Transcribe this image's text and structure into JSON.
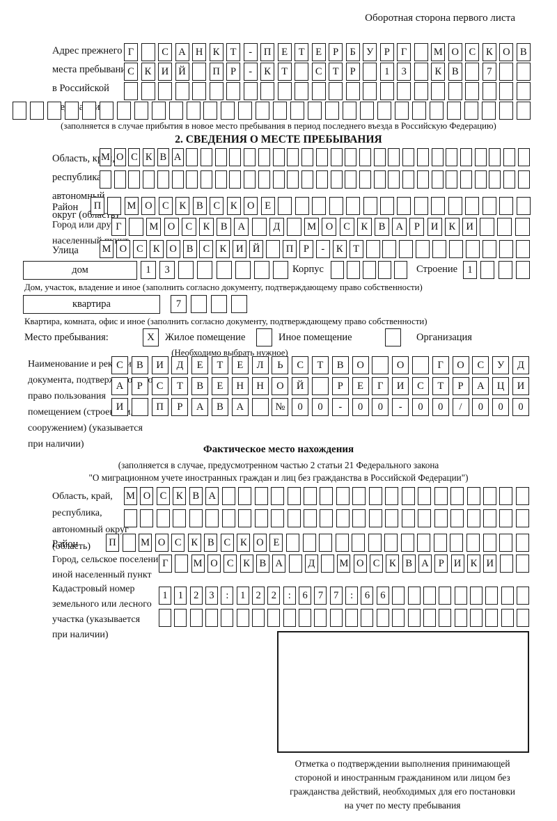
{
  "page_header": "Оборотная сторона первого листа",
  "prev_address": {
    "label": "Адрес прежнего\nместа пребывания\nв Российской\nФедерации",
    "rows": [
      {
        "count": 24,
        "value": "Г САНКТ-ПЕТЕРБУРГ МОСКОВ"
      },
      {
        "count": 24,
        "value": "СКИЙ ПР-КТ СТР 13 КВ 7"
      },
      {
        "count": 24,
        "value": ""
      },
      {
        "count": 30,
        "value": ""
      }
    ],
    "note": "(заполняется в случае прибытия в новое место пребывания в период последнего въезда в Российскую Федерацию)"
  },
  "section2": {
    "title": "2. СВЕДЕНИЯ О МЕСТЕ ПРЕБЫВАНИЯ",
    "oblast": {
      "label": "Область, край,\nреспублика,\nавтономный\nокруг (область)",
      "rows": [
        {
          "count": 30,
          "value": "МОСКВА"
        },
        {
          "count": 30,
          "value": ""
        }
      ]
    },
    "raion": {
      "label": "Район",
      "row": {
        "count": 26,
        "value": "П МОСКВСКОЕ"
      }
    },
    "gorod": {
      "label": "Город или другой\nнаселенный пункт",
      "row": {
        "count": 24,
        "value": "Г МОСКВА Д МОСКВАРИКИ"
      }
    },
    "ulitsa": {
      "label": "Улица",
      "row": {
        "count": 26,
        "value": "МОСКОВСКИЙ ПР-КТ"
      }
    },
    "dom": {
      "box_label": "дом",
      "row": {
        "count": 8,
        "value": "13"
      },
      "korpus_label": "Корпус",
      "korpus_row": {
        "count": 5,
        "value": ""
      },
      "stroenie_label": "Строение",
      "stroenie_row": {
        "count": 4,
        "value": "1"
      },
      "note": "Дом, участок, владение и иное (заполнить согласно документу, подтверждающему право собственности)"
    },
    "kvartira": {
      "box_label": "квартира",
      "row": {
        "count": 4,
        "value": "7"
      },
      "note": "Квартира, комната, офис и иное (заполнить согласно документу, подтверждающему право собственности)"
    },
    "mesto": {
      "label": "Место пребывания:",
      "options": [
        {
          "label": "Жилое помещение",
          "checked": "X"
        },
        {
          "label": "Иное помещение",
          "checked": ""
        },
        {
          "label": "Организация",
          "checked": ""
        }
      ],
      "note": "(Необходимо выбрать нужное)"
    },
    "document": {
      "label": "Наименование и реквизиты\nдокумента, подтверждающего\nправо пользования\nпомещением (строением,\nсооружением) (указывается\nпри наличии)",
      "rows": [
        {
          "count": 21,
          "value": "СВИДЕТЕЛЬСТВО О ГОСУД"
        },
        {
          "count": 21,
          "value": "АРСТВЕННОЙ РЕГИСТРАЦИ"
        },
        {
          "count": 21,
          "value": "И ПРАВА №00-00-00/000"
        }
      ]
    }
  },
  "fact": {
    "title": "Фактическое место нахождения",
    "note1": "(заполняется в случае, предусмотренном частью 2 статьи 21 Федерального закона",
    "note2": "\"О миграционном учете иностранных граждан и лиц без гражданства в Российской Федерации\")",
    "oblast": {
      "label": "Область, край,\nреспублика,\nавтономный округ\n(область)",
      "rows": [
        {
          "count": 25,
          "value": "МОСКВА"
        },
        {
          "count": 25,
          "value": ""
        }
      ]
    },
    "raion": {
      "label": "Район",
      "row": {
        "count": 26,
        "value": "П МОСКВСКОЕ"
      }
    },
    "gorod": {
      "label": "Город, сельское поселение,\nиной населенный пункт",
      "row": {
        "count": 23,
        "value": "Г МОСКВА Д МОСКВАРИКИ"
      }
    },
    "kadastr": {
      "label": "Кадастровый номер\nземельного или лесного\nучастка (указывается\nпри наличии)",
      "rows": [
        {
          "count": 24,
          "value": "1123:122:677:66"
        },
        {
          "count": 24,
          "value": ""
        }
      ]
    },
    "stamp_note": "Отметка о подтверждении выполнения принимающей\nстороной и иностранным гражданином или лицом без\nгражданства действий, необходимых для его постановки\nна учет по месту пребывания"
  }
}
